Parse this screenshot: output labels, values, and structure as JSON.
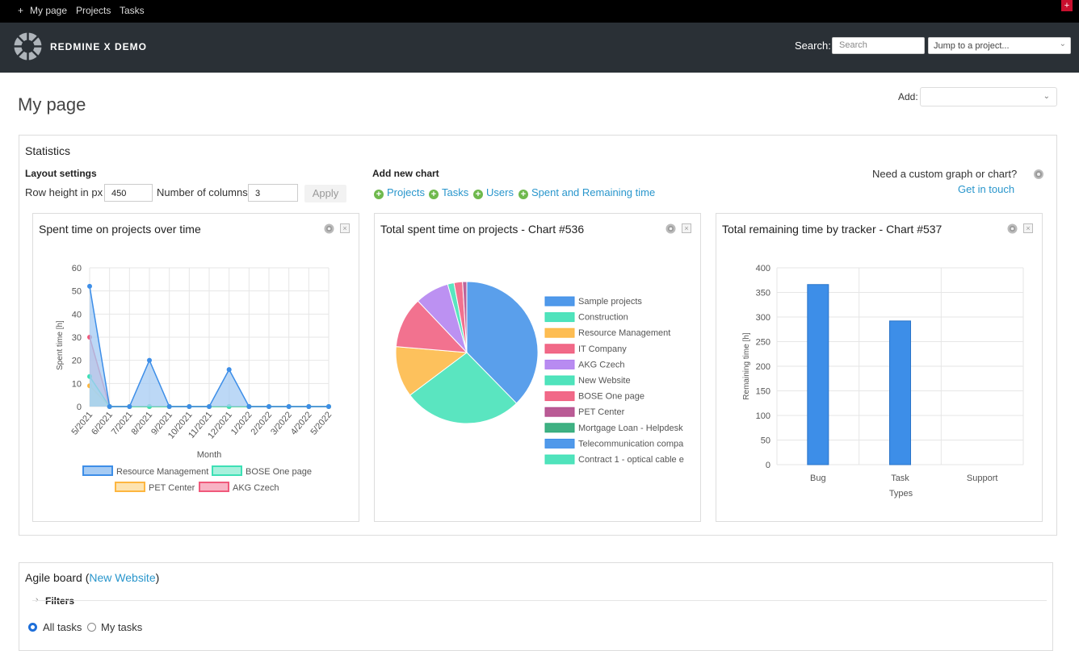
{
  "topbar": {
    "plus": "+",
    "my_page": "My page",
    "projects": "Projects",
    "tasks": "Tasks",
    "corner": "+"
  },
  "header": {
    "brand": "REDMINE X DEMO",
    "search_label": "Search:",
    "search_placeholder": "Search",
    "jump_label": "Jump to a project..."
  },
  "page": {
    "title": "My page",
    "add_label": "Add:"
  },
  "statistics": {
    "title": "Statistics",
    "layout_title": "Layout settings",
    "row_height_label": "Row height in px",
    "row_height_value": "450",
    "columns_label": "Number of columns",
    "columns_value": "3",
    "apply_label": "Apply",
    "add_chart_title": "Add new chart",
    "add_links": [
      "Projects",
      "Tasks",
      "Users",
      "Spent and Remaining time"
    ],
    "custom_question": "Need a custom graph or chart?",
    "custom_link": "Get in touch"
  },
  "charts": {
    "c1": {
      "title": "Spent time on projects over time"
    },
    "c2": {
      "title": "Total spent time on projects - Chart #536"
    },
    "c3": {
      "title": "Total remaining time by tracker - Chart #537"
    }
  },
  "chart_data": [
    {
      "type": "area",
      "title": "Spent time on projects over time",
      "xlabel": "Month",
      "ylabel": "Spent time [h]",
      "ylim": [
        0,
        60
      ],
      "yticks": [
        0,
        10,
        20,
        30,
        40,
        50,
        60
      ],
      "categories": [
        "5/2021",
        "6/2021",
        "7/2021",
        "8/2021",
        "9/2021",
        "10/2021",
        "11/2021",
        "12/2021",
        "1/2022",
        "2/2022",
        "3/2022",
        "4/2022",
        "5/2022"
      ],
      "legend_position": "bottom",
      "series": [
        {
          "name": "Resource Management",
          "color": "#3d8ee8",
          "fill": "#a6cbf3",
          "values": [
            52,
            0,
            0,
            20,
            0,
            0,
            0,
            16,
            0,
            0,
            0,
            0,
            0
          ]
        },
        {
          "name": "BOSE One page",
          "color": "#3de0b5",
          "fill": "#a8f0dc",
          "values": [
            13,
            0,
            0,
            0,
            0,
            0,
            0,
            0,
            0,
            0,
            0,
            0,
            0
          ]
        },
        {
          "name": "PET Center",
          "color": "#fdb640",
          "fill": "#fde3b0",
          "values": [
            9,
            0,
            0,
            0,
            0,
            0,
            0,
            0,
            0,
            0,
            0,
            0,
            0
          ]
        },
        {
          "name": "AKG Czech",
          "color": "#f0597b",
          "fill": "#f8b3c4",
          "values": [
            30,
            0,
            0,
            0,
            0,
            0,
            0,
            0,
            0,
            0,
            0,
            0,
            0
          ]
        }
      ]
    },
    {
      "type": "pie",
      "title": "Total spent time on projects - Chart #536",
      "legend_position": "right",
      "categories": [
        "Sample projects",
        "Construction",
        "Resource Management",
        "IT Company",
        "AKG Czech",
        "New Website",
        "BOSE One page",
        "PET Center",
        "Mortgage Loan - Helpdesk",
        "Telecommunication compa",
        "Contract 1 - optical cable e"
      ],
      "values": [
        39,
        28,
        12,
        12,
        8,
        1.5,
        2,
        1,
        0,
        0,
        0
      ],
      "colors": [
        "#3d8ee8",
        "#3de0b5",
        "#fdb640",
        "#f0597b",
        "#b07ef0",
        "#3de0b5",
        "#f0597b",
        "#b2498a",
        "#2aa876",
        "#3d8ee8",
        "#3de0b5"
      ]
    },
    {
      "type": "bar",
      "title": "Total remaining time by tracker - Chart #537",
      "xlabel": "Types",
      "ylabel": "Remaining time [h]",
      "ylim": [
        0,
        400
      ],
      "yticks": [
        0,
        50,
        100,
        150,
        200,
        250,
        300,
        350,
        400
      ],
      "categories": [
        "Bug",
        "Task",
        "Support"
      ],
      "values": [
        366,
        292,
        0
      ],
      "color": "#3d8ee8"
    }
  ],
  "agile": {
    "title_prefix": "Agile board (",
    "project_link": "New Website",
    "title_suffix": ")",
    "filters": "Filters",
    "all_tasks": "All tasks",
    "my_tasks": "My tasks"
  }
}
